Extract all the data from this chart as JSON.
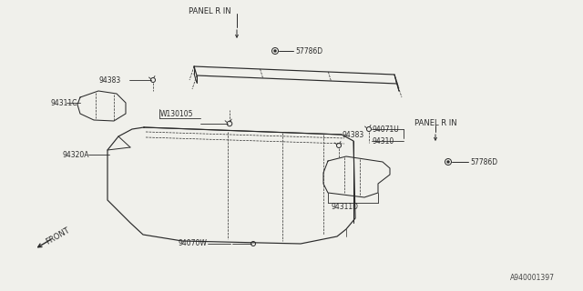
{
  "bg_color": "#f0f0eb",
  "line_color": "#2a2a2a",
  "text_color": "#2a2a2a",
  "watermark": "A940001397",
  "parts": {
    "panel_label_top": "PANEL R IN",
    "screw_top_label": "57786D",
    "clip_top_left_label": "94383",
    "bracket_top_left_label": "94311C",
    "clip_top_right_label": "94071U",
    "panel_right_label": "94310",
    "panel_label_bottom": "PANEL R IN",
    "screw_bottom_label": "57786D",
    "clip_bottom_label": "94383",
    "bracket_bottom_label": "94311D",
    "bolt_label": "W130105",
    "panel_left_label": "94320A",
    "clip_bottom_left_label": "94070W",
    "front_label": "FRONT"
  }
}
